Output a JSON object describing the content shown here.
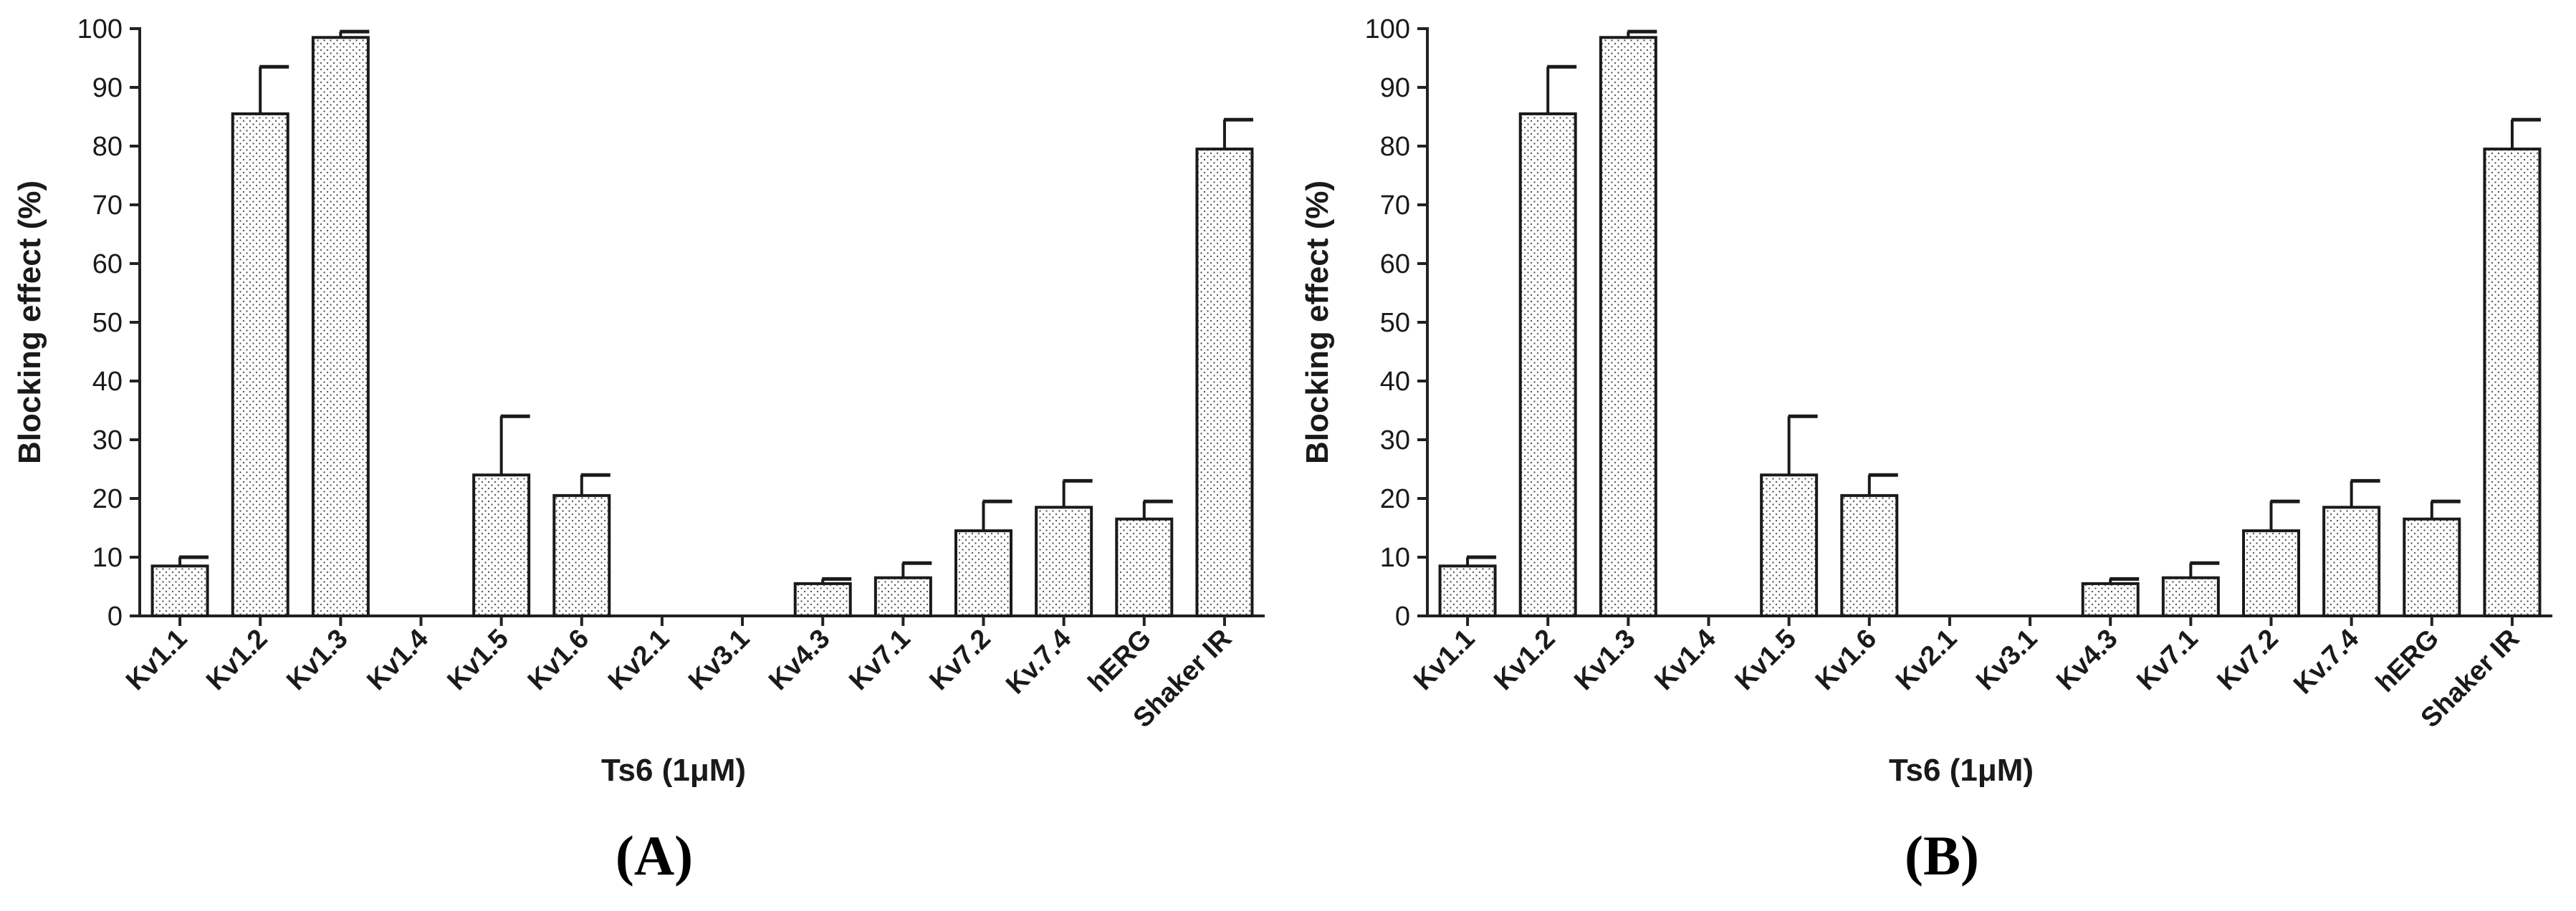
{
  "chart_data": [
    {
      "type": "bar",
      "panel": "(A)",
      "xlabel": "Ts6 (1μM)",
      "ylabel": "Blocking effect (%)",
      "ylim": [
        0,
        100
      ],
      "yticks": [
        0,
        10,
        20,
        30,
        40,
        50,
        60,
        70,
        80,
        90,
        100
      ],
      "categories": [
        "Kv1.1",
        "Kv1.2",
        "Kv1.3",
        "Kv1.4",
        "Kv1.5",
        "Kv1.6",
        "Kv2.1",
        "Kv3.1",
        "Kv4.3",
        "Kv7.1",
        "Kv7.2",
        "Kv.7.4",
        "hERG",
        "Shaker IR"
      ],
      "values": [
        8.5,
        85.5,
        98.5,
        0,
        24,
        20.5,
        0,
        0,
        5.5,
        6.5,
        14.5,
        18.5,
        16.5,
        79.5
      ],
      "errors": [
        1.5,
        8,
        1,
        0,
        10,
        3.5,
        0,
        0,
        0.8,
        2.5,
        5,
        4.5,
        3,
        5
      ],
      "grid": false,
      "bar_style": "dotted"
    },
    {
      "type": "bar",
      "panel": "(B)",
      "xlabel": "Ts6 (1μM)",
      "ylabel": "Blocking effect (%)",
      "ylim": [
        0,
        100
      ],
      "yticks": [
        0,
        10,
        20,
        30,
        40,
        50,
        60,
        70,
        80,
        90,
        100
      ],
      "categories": [
        "Kv1.1",
        "Kv1.2",
        "Kv1.3",
        "Kv1.4",
        "Kv1.5",
        "Kv1.6",
        "Kv2.1",
        "Kv3.1",
        "Kv4.3",
        "Kv7.1",
        "Kv7.2",
        "Kv.7.4",
        "hERG",
        "Shaker IR"
      ],
      "values": [
        8.5,
        85.5,
        98.5,
        0,
        24,
        20.5,
        0,
        0,
        5.5,
        6.5,
        14.5,
        18.5,
        16.5,
        79.5
      ],
      "errors": [
        1.5,
        8,
        1,
        0,
        10,
        3.5,
        0,
        0,
        0.8,
        2.5,
        5,
        4.5,
        3,
        5
      ],
      "grid": false,
      "bar_style": "dotted"
    }
  ]
}
